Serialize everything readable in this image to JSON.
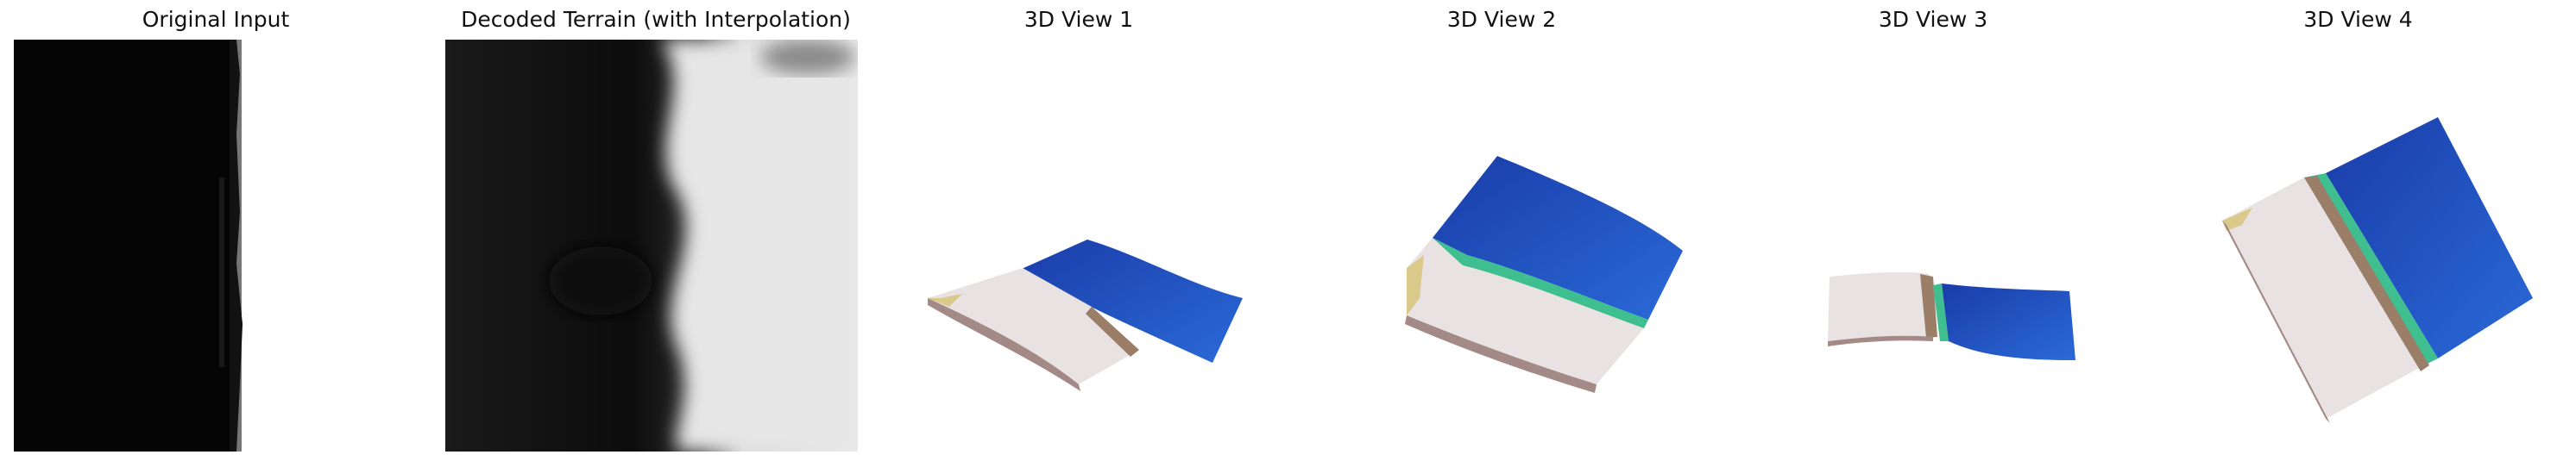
{
  "figure": {
    "panels": [
      {
        "title": "Original Input"
      },
      {
        "title": "Decoded Terrain (with Interpolation)"
      },
      {
        "title": "3D View 1"
      },
      {
        "title": "3D View 2"
      },
      {
        "title": "3D View 3"
      },
      {
        "title": "3D View 4"
      }
    ]
  },
  "colors": {
    "water_deep": "#1f3fb0",
    "water": "#2563d0",
    "shore_green": "#3fbf8f",
    "sand": "#d9c98a",
    "land": "#e8e0e0",
    "cliff": "#8a7060"
  }
}
